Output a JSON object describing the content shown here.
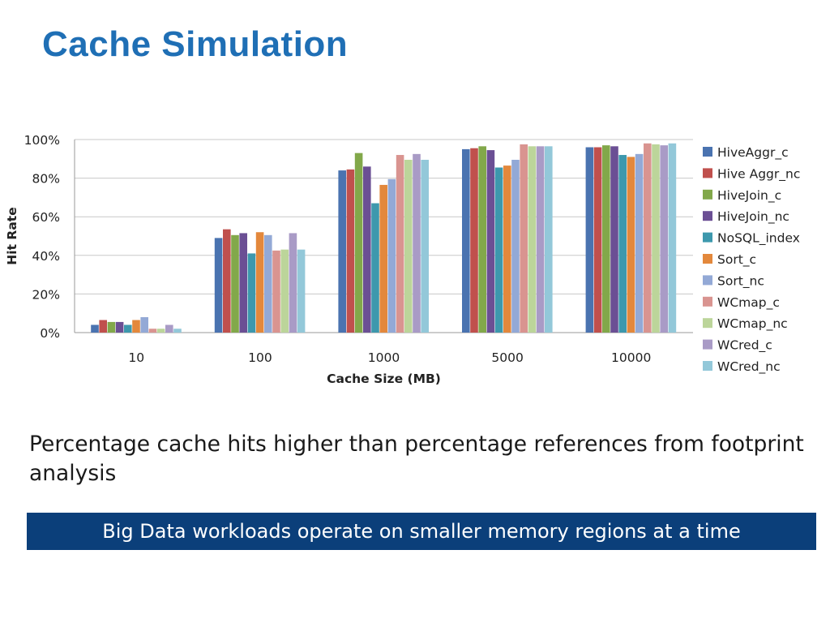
{
  "slide": {
    "title": "Cache Simulation",
    "body_text": "Percentage cache hits higher than percentage references from footprint analysis",
    "banner_text": "Big Data workloads operate on smaller memory regions at a time",
    "colors": {
      "title": "#1f6fb5",
      "banner_bg": "#0b3f7a",
      "banner_text": "#ffffff"
    }
  },
  "chart_data": {
    "type": "bar",
    "title": "",
    "xlabel": "Cache Size (MB)",
    "ylabel": "Hit Rate",
    "ylim": [
      0,
      100
    ],
    "yticks": [
      "0%",
      "20%",
      "40%",
      "60%",
      "80%",
      "100%"
    ],
    "grid": true,
    "legend_position": "right",
    "categories": [
      "10",
      "100",
      "1000",
      "5000",
      "10000"
    ],
    "series": [
      {
        "name": "HiveAggr_c",
        "color": "#4a73b0",
        "values": [
          4,
          49,
          84,
          95,
          96
        ]
      },
      {
        "name": "Hive Aggr_nc",
        "color": "#c0504d",
        "values": [
          6.5,
          53.5,
          84.5,
          95.5,
          96
        ]
      },
      {
        "name": "HiveJoin_c",
        "color": "#82a84a",
        "values": [
          5.5,
          50.5,
          93,
          96.5,
          97
        ]
      },
      {
        "name": "HiveJoin_nc",
        "color": "#6b4f94",
        "values": [
          5.5,
          51.5,
          86,
          94.5,
          96.5
        ]
      },
      {
        "name": "NoSQL_index",
        "color": "#3d98ad",
        "values": [
          4,
          41,
          67,
          85.5,
          92
        ]
      },
      {
        "name": "Sort_c",
        "color": "#e3883c",
        "values": [
          6.5,
          52,
          76.5,
          86.5,
          91
        ]
      },
      {
        "name": "Sort_nc",
        "color": "#93a9d6",
        "values": [
          8,
          50.5,
          79.5,
          89.5,
          92.5
        ]
      },
      {
        "name": "WCmap_c",
        "color": "#d99490",
        "values": [
          2,
          42.5,
          92,
          97.5,
          98
        ]
      },
      {
        "name": "WCmap_nc",
        "color": "#bcd59a",
        "values": [
          2,
          43,
          89.5,
          96.5,
          97.5
        ]
      },
      {
        "name": "WCred_c",
        "color": "#a99bc6",
        "values": [
          4,
          51.5,
          92.5,
          96.5,
          97
        ]
      },
      {
        "name": "WCred_nc",
        "color": "#93c8d9",
        "values": [
          2,
          43,
          89.5,
          96.5,
          98
        ]
      }
    ]
  }
}
